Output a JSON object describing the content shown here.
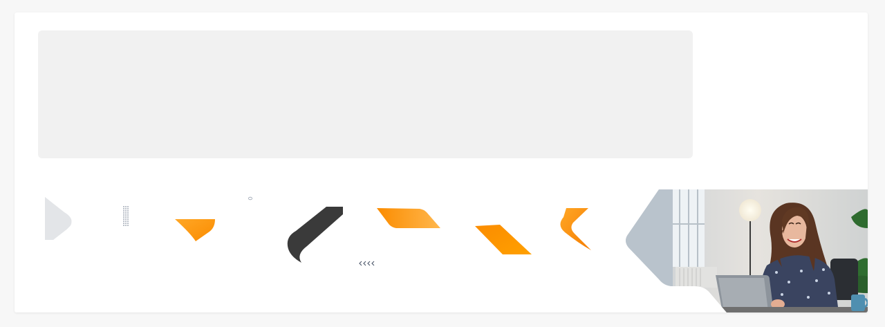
{
  "colors": {
    "page_bg": "#f7f7f7",
    "card_bg": "#ffffff",
    "placeholder_bg": "#f1f1f1",
    "accent_orange": "#fb8c00",
    "accent_orange_light": "#ffb347",
    "dark_ribbon": "#3a3a3a",
    "light_gray_chevron": "#e3e5e8"
  },
  "decorations": {
    "shapes": [
      "light-gray-chevron",
      "dot-grid",
      "orange-triangle",
      "small-ring",
      "dark-ribbon-swoosh",
      "tiny-chevrons",
      "orange-parallelogram",
      "orange-slant-bar",
      "orange-chevron-left"
    ]
  },
  "hero_image": {
    "subject": "woman-with-laptop-photo"
  }
}
